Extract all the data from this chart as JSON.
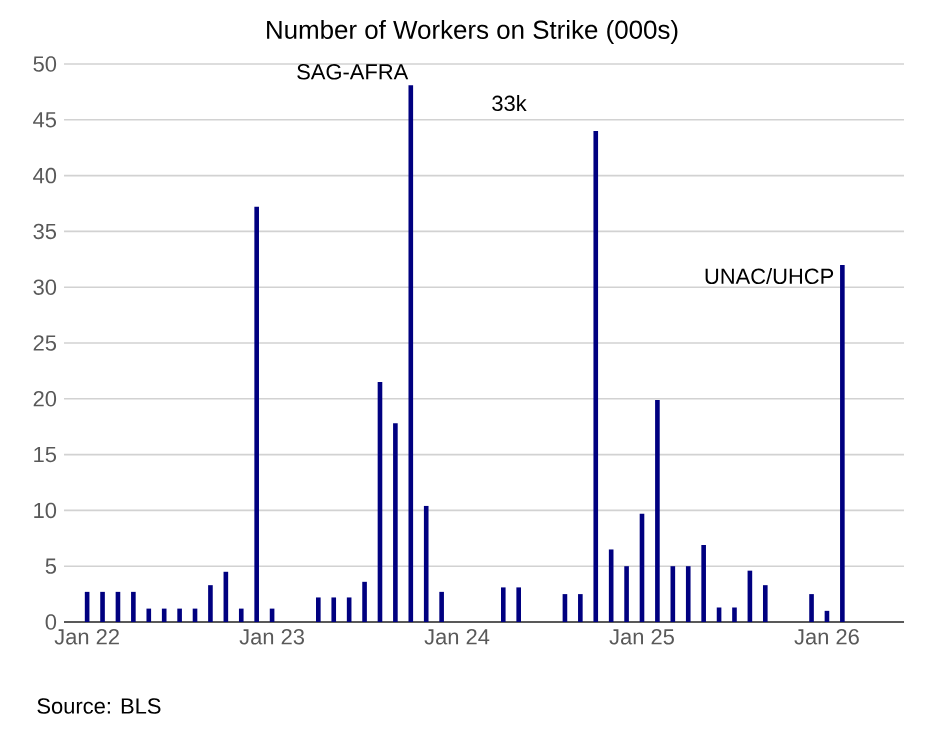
{
  "chart_data": {
    "type": "bar",
    "title": "Number of Workers on Strike (000s)",
    "categories": [
      "Jan 22",
      null,
      null,
      null,
      null,
      null,
      null,
      null,
      null,
      null,
      null,
      null,
      "Jan 23",
      null,
      null,
      null,
      null,
      null,
      null,
      null,
      null,
      null,
      null,
      null,
      "Jan 24",
      null,
      null,
      null,
      null,
      null,
      null,
      null,
      null,
      null,
      null,
      null,
      "Jan 25",
      null,
      null,
      null,
      null,
      null,
      null,
      null,
      null,
      null,
      null,
      null,
      "Jan 26",
      null
    ],
    "values": [
      2.7,
      2.7,
      2.7,
      2.7,
      1.2,
      1.2,
      1.2,
      1.2,
      3.3,
      4.5,
      1.2,
      37.2,
      1.2,
      null,
      null,
      2.2,
      2.2,
      2.2,
      3.6,
      21.5,
      17.8,
      48.1,
      10.4,
      2.7,
      null,
      null,
      null,
      3.1,
      3.1,
      null,
      null,
      2.5,
      2.5,
      44.0,
      6.5,
      5.0,
      9.7,
      19.9,
      5.0,
      5.0,
      6.9,
      1.3,
      1.3,
      4.6,
      3.3,
      null,
      null,
      2.5,
      1.0,
      32.0
    ],
    "color": "#000080",
    "ylim": [
      0,
      50
    ],
    "yticks": [
      0,
      5,
      10,
      15,
      20,
      25,
      30,
      35,
      40,
      45,
      50
    ],
    "grid": "y",
    "annotations": [
      "SAG-AFRA",
      "33k",
      "UNAC/UHCP",
      "Source: BLS"
    ]
  }
}
